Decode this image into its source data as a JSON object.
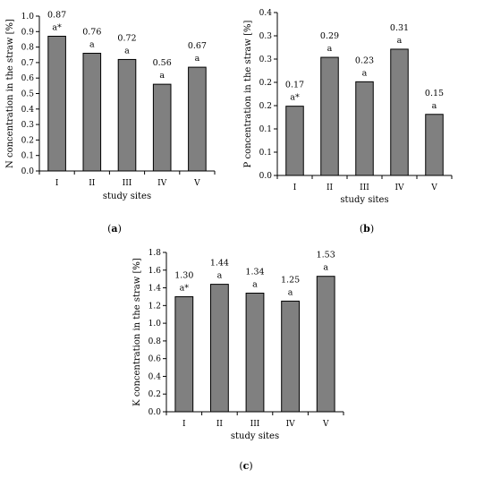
{
  "chart_data": [
    {
      "type": "bar",
      "panel": "a",
      "categories": [
        "I",
        "II",
        "III",
        "IV",
        "V"
      ],
      "values": [
        0.87,
        0.76,
        0.72,
        0.56,
        0.67
      ],
      "value_labels": [
        "0.87",
        "0.76",
        "0.72",
        "0.56",
        "0.67"
      ],
      "letters": [
        "a*",
        "a",
        "a",
        "a",
        "a"
      ],
      "xlabel": "study sites",
      "ylabel": "N concentration in the straw [%]",
      "ylim": [
        0,
        1.0
      ],
      "yticks": [
        "0.0",
        "0.1",
        "0.2",
        "0.3",
        "0.4",
        "0.5",
        "0.6",
        "0.7",
        "0.8",
        "0.9",
        "1.0"
      ],
      "bar_color": "#808080",
      "grid": false,
      "legend": "none"
    },
    {
      "type": "bar",
      "panel": "b",
      "categories": [
        "I",
        "II",
        "III",
        "IV",
        "V"
      ],
      "values": [
        0.17,
        0.29,
        0.23,
        0.31,
        0.15
      ],
      "value_labels": [
        "0.17",
        "0.29",
        "0.23",
        "0.31",
        "0.15"
      ],
      "letters": [
        "a*",
        "a",
        "a",
        "a",
        "a"
      ],
      "xlabel": "study sites",
      "ylabel": "P concentration in the straw [%]",
      "ylim": [
        0,
        0.4
      ],
      "yticks": [
        "0.0",
        "0.1",
        "0.1",
        "0.2",
        "0.2",
        "0.3",
        "0.3",
        "0.4"
      ],
      "bar_color": "#808080",
      "grid": false,
      "legend": "none"
    },
    {
      "type": "bar",
      "panel": "c",
      "categories": [
        "I",
        "II",
        "III",
        "IV",
        "V"
      ],
      "values": [
        1.3,
        1.44,
        1.34,
        1.25,
        1.53
      ],
      "value_labels": [
        "1.30",
        "1.44",
        "1.34",
        "1.25",
        "1.53"
      ],
      "letters": [
        "a*",
        "a",
        "a",
        "a",
        "a"
      ],
      "xlabel": "study sites",
      "ylabel": "K concentration in the straw [%]",
      "ylim": [
        0,
        1.8
      ],
      "yticks": [
        "0.0",
        "0.2",
        "0.4",
        "0.6",
        "0.8",
        "1.0",
        "1.2",
        "1.4",
        "1.6",
        "1.8"
      ],
      "bar_color": "#808080",
      "grid": false,
      "legend": "none"
    }
  ]
}
